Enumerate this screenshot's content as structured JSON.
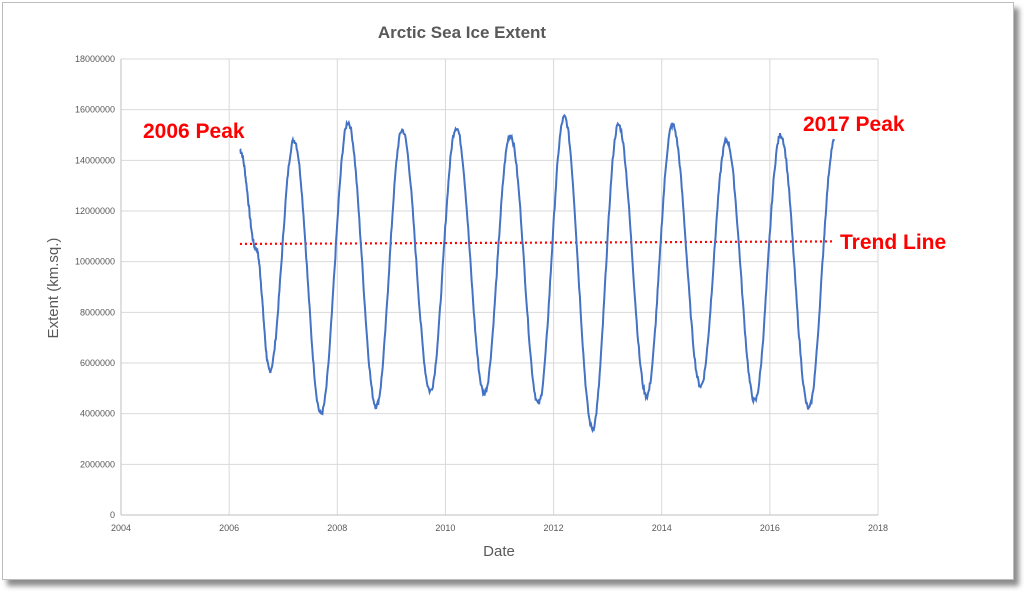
{
  "colors": {
    "series": "#4472c4",
    "trend": "#ff0000",
    "grid": "#d9d9d9",
    "text": "#595959",
    "annotation": "#ff0000"
  },
  "chart_data": {
    "type": "line",
    "title": "Arctic Sea Ice Extent",
    "xlabel": "Date",
    "ylabel": "Extent (km.sq.)",
    "xlim": [
      2004,
      2018
    ],
    "ylim": [
      0,
      18000000
    ],
    "x_ticks": [
      "2004",
      "2006",
      "2008",
      "2010",
      "2012",
      "2014",
      "2016",
      "2018"
    ],
    "y_ticks": [
      "0",
      "2000000",
      "4000000",
      "6000000",
      "8000000",
      "10000000",
      "12000000",
      "14000000",
      "16000000",
      "18000000"
    ],
    "grid": true,
    "legend": false,
    "series": [
      {
        "x": [
          2006.2,
          2006.5,
          2006.75,
          2007.2,
          2007.7,
          2008.2,
          2008.72,
          2009.2,
          2009.72,
          2010.2,
          2010.72,
          2011.2,
          2011.72,
          2012.2,
          2012.72,
          2013.2,
          2013.72,
          2014.2,
          2014.72,
          2015.2,
          2015.72,
          2016.2,
          2016.72,
          2017.2
        ],
        "y": [
          14400000,
          10500000,
          5700000,
          14800000,
          4000000,
          15500000,
          4300000,
          15200000,
          4900000,
          15300000,
          4800000,
          15000000,
          4400000,
          15700000,
          3400000,
          15400000,
          4700000,
          15400000,
          5100000,
          14800000,
          4500000,
          15000000,
          4200000,
          14800000
        ]
      }
    ],
    "trend_line": {
      "x": [
        2006.2,
        2017.2
      ],
      "y": [
        10700000,
        10800000
      ]
    },
    "annotations": [
      {
        "text": "2006 Peak"
      },
      {
        "text": "2017 Peak"
      },
      {
        "text": "Trend Line"
      }
    ]
  }
}
